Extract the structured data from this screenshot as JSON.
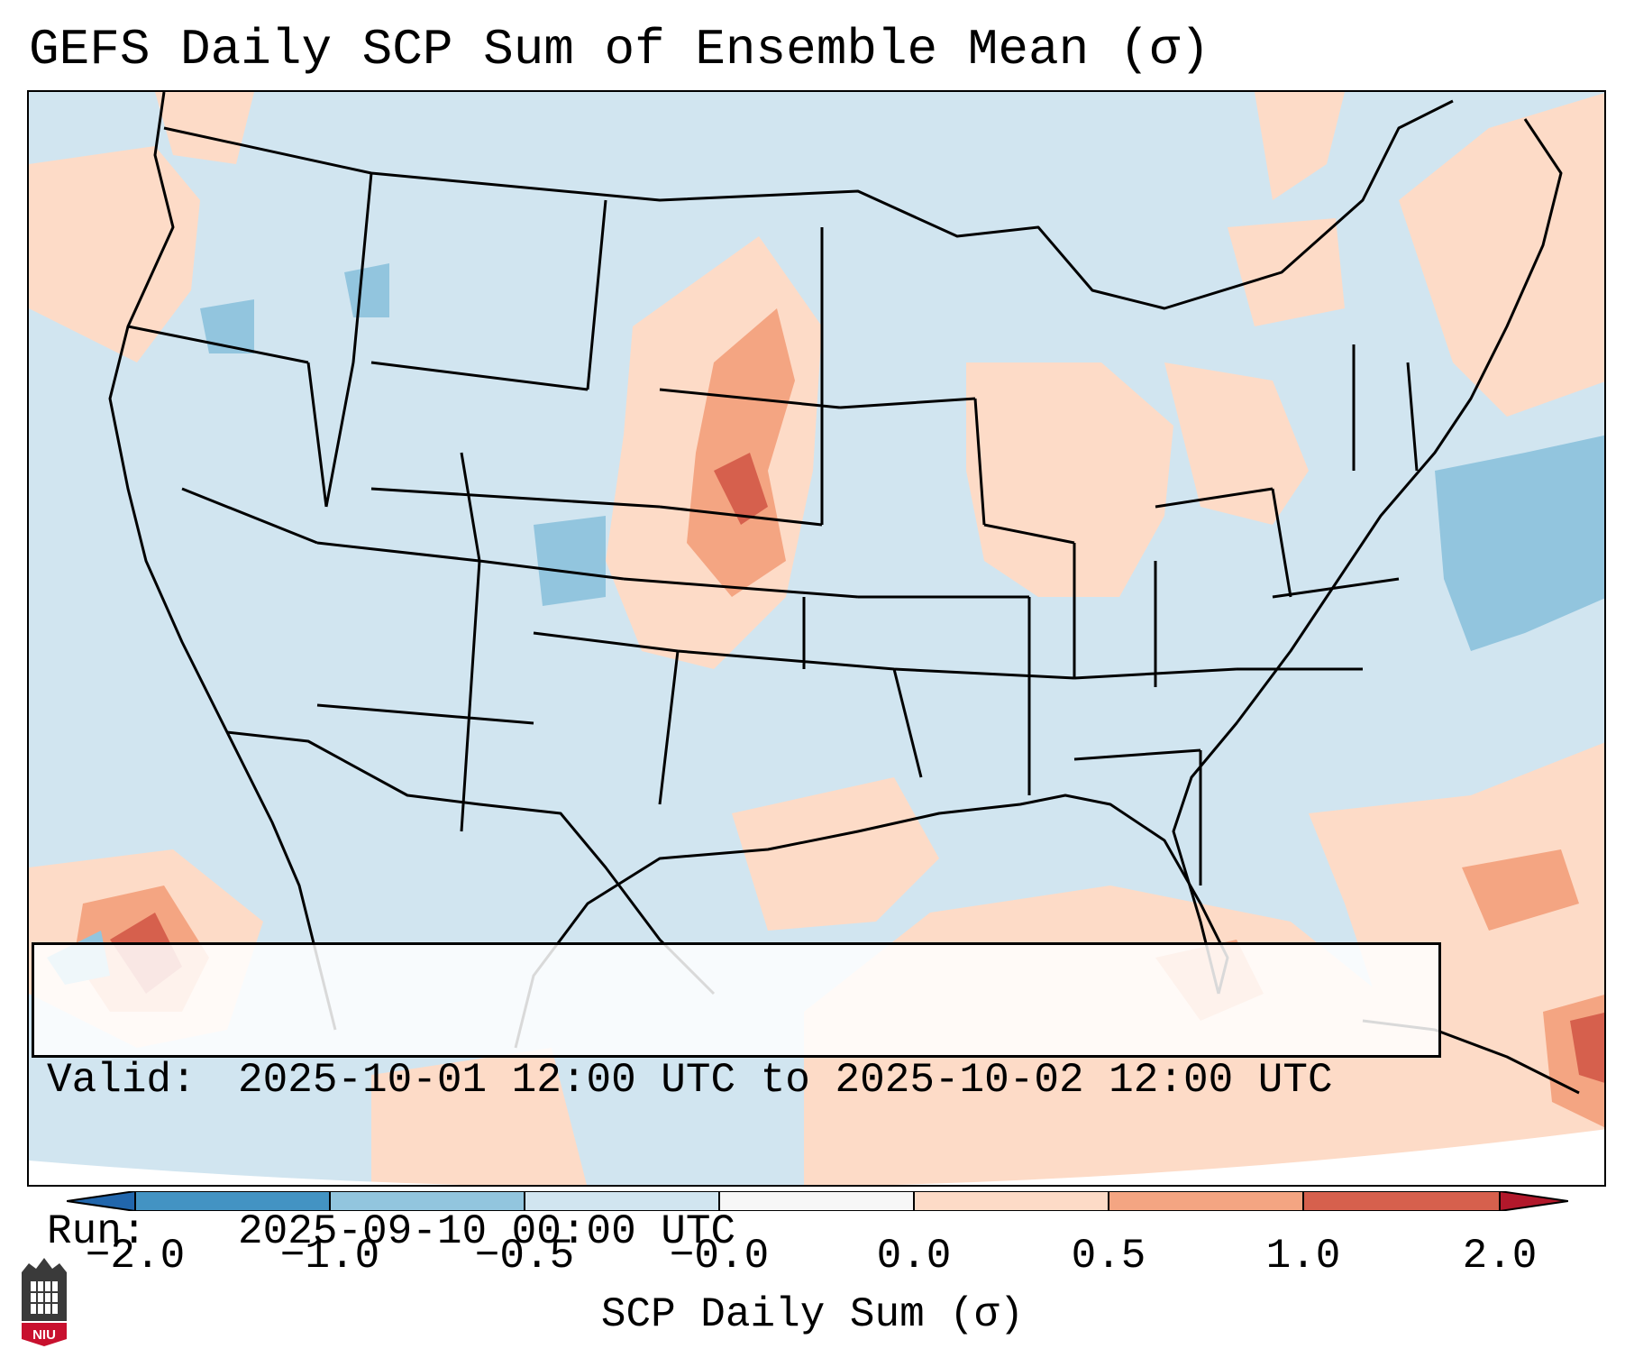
{
  "title": "GEFS Daily SCP Sum of Ensemble Mean (σ)",
  "info_box": {
    "valid_label": "Valid:",
    "valid_value": "2025-10-01 12:00 UTC to 2025-10-02 12:00 UTC",
    "run_label": "Run:",
    "run_value": "2025-09-10 00:00 UTC"
  },
  "colorbar": {
    "label": "SCP Daily Sum (σ)",
    "ticks": [
      "−2.0",
      "−1.0",
      "−0.5",
      "−0.0",
      "0.0",
      "0.5",
      "1.0",
      "2.0"
    ],
    "segment_colors": [
      "#4393c3",
      "#92c5de",
      "#d1e5f0",
      "#f7f7f7",
      "#fddbc7",
      "#f4a582",
      "#d6604d"
    ],
    "extend_low_color": "#2166ac",
    "extend_high_color": "#b2182b"
  },
  "map": {
    "background_color": "#d1e5f0",
    "regions": "Contiguous United States, southern Canada, Mexico, Gulf of Mexico and Caribbean"
  },
  "logo": {
    "text": "NIU"
  }
}
